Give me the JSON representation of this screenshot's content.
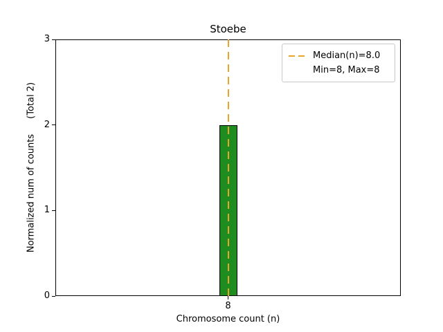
{
  "chart_data": {
    "type": "bar",
    "title": "Stoebe",
    "xlabel": "Chromosome count (n)",
    "ylabel": "Normalized num of counts",
    "ylabel_suffix": "(Total 2)",
    "categories": [
      "8"
    ],
    "values": [
      2
    ],
    "ylim": [
      0,
      3
    ],
    "yticks": [
      0,
      1,
      2,
      3
    ],
    "median": 8.0,
    "min": 8,
    "max": 8,
    "total_counts": 2,
    "legend": [
      "Median(n)=8.0",
      "Min=8, Max=8"
    ],
    "legend_position": "upper right",
    "grid": false,
    "bar_color": "#1e8c1e",
    "bar_edge_color": "#000000",
    "median_line_color": "#e9a52a"
  }
}
